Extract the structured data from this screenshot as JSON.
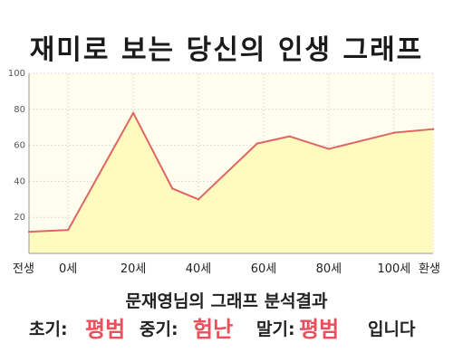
{
  "title": "재미로 보는 당신의 인생 그래프",
  "chart_data": {
    "type": "area",
    "title": "재미로 보는 당신의 인생 그래프",
    "xlabel": "",
    "ylabel": "",
    "x_ticks": [
      {
        "label": "전생",
        "x": -12
      },
      {
        "label": "0세",
        "x": 0
      },
      {
        "label": "20세",
        "x": 20
      },
      {
        "label": "40세",
        "x": 40
      },
      {
        "label": "60세",
        "x": 60
      },
      {
        "label": "80세",
        "x": 80
      },
      {
        "label": "100세",
        "x": 100
      },
      {
        "label": "환생",
        "x": 112
      }
    ],
    "y_ticks": [
      20,
      40,
      60,
      80,
      100
    ],
    "xlim": [
      -12,
      112
    ],
    "ylim": [
      0,
      100
    ],
    "points": [
      {
        "x": -12,
        "y": 12
      },
      {
        "x": 0,
        "y": 13
      },
      {
        "x": 20,
        "y": 78
      },
      {
        "x": 32,
        "y": 36
      },
      {
        "x": 40,
        "y": 30
      },
      {
        "x": 58,
        "y": 61
      },
      {
        "x": 68,
        "y": 65
      },
      {
        "x": 80,
        "y": 58
      },
      {
        "x": 100,
        "y": 67
      },
      {
        "x": 112,
        "y": 69
      }
    ],
    "grid": true,
    "legend": "none",
    "colors": {
      "line": "#e06666",
      "fill": "#fffbbf",
      "grid": "#dddddd"
    }
  },
  "summary": {
    "heading": "문재영님의 그래프 분석결과",
    "early_label": "초기:",
    "early_value": "평범",
    "middle_label": "중기:",
    "middle_value": "험난",
    "late_label": "말기:",
    "late_value": "평범",
    "ending": "입니다"
  }
}
